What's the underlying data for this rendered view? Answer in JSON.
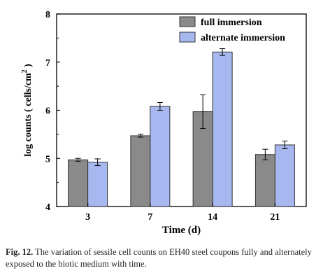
{
  "chart_data": {
    "type": "bar",
    "categories": [
      "3",
      "7",
      "14",
      "21"
    ],
    "series": [
      {
        "name": "full immersion",
        "values": [
          4.97,
          5.47,
          5.97,
          5.08
        ],
        "errors": [
          0.03,
          0.03,
          0.35,
          0.11
        ],
        "color": "#8a8a8a"
      },
      {
        "name": "alternate immersion",
        "values": [
          4.92,
          6.08,
          7.21,
          5.28
        ],
        "errors": [
          0.07,
          0.08,
          0.07,
          0.08
        ],
        "color": "#a7b8f0"
      }
    ],
    "xlabel": "Time (d)",
    "ylabel": "log counts ( cells/cm",
    "ylabel_sup": "2",
    "ylabel_end": " )",
    "ylim": [
      4,
      8
    ],
    "yticks": [
      4,
      5,
      6,
      7,
      8
    ],
    "legend_position": "top-right"
  },
  "caption": {
    "label": "Fig. 12.",
    "text": " The variation of sessile cell counts on EH40 steel coupons fully and alternately exposed to the biotic medium with time."
  }
}
